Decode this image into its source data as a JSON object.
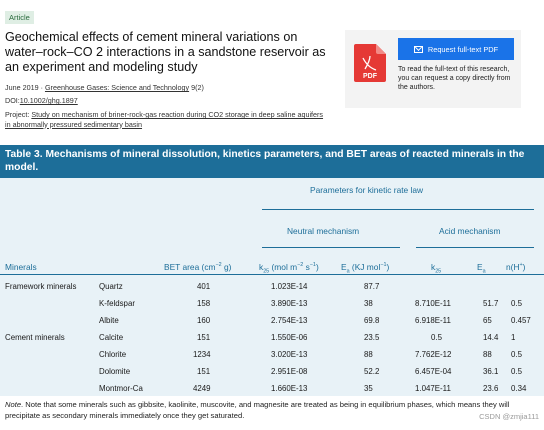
{
  "article": {
    "badge": "Article",
    "title": "Geochemical effects of cement mineral variations on water–rock–CO 2 interactions in a sandstone reservoir as an experiment and modeling study",
    "date": "June 2019",
    "journal": "Greenhouse Gases: Science and Technology",
    "issue": "9(2)",
    "doi_prefix": "DOI:",
    "doi": "10.1002/ghg.1897",
    "project_prefix": "Project:",
    "project": "Study on mechanism of briner-rock-gas reaction during CO2 storage in deep saline aquifers in abnormally pressured sedimentary basin"
  },
  "request": {
    "button_label": "Request full-text PDF",
    "description": "To read the full-text of this research, you can request a copy directly from the authors.",
    "pdf_label": "PDF"
  },
  "table": {
    "caption": "Table 3.  Mechanisms of mineral dissolution, kinetics parameters, and BET areas of reacted minerals in the model.",
    "group_header": "Parameters for kinetic rate law",
    "neutral_header": "Neutral mechanism",
    "acid_header": "Acid mechanism",
    "headers": {
      "minerals": "Minerals",
      "bet_area": "BET area (cm",
      "bet_exp": "−2",
      "bet_unit": " g)",
      "k_neutral": "k",
      "k_neutral_sub": "25",
      "k_neutral_unit": " (mol m",
      "k_neutral_exp1": "−2",
      "k_neutral_mid": " s",
      "k_neutral_exp2": "−1",
      "k_neutral_end": ")",
      "ea_neutral": "E",
      "ea_neutral_sub": "a",
      "ea_neutral_unit": " (KJ mol",
      "ea_neutral_exp": "−1",
      "ea_neutral_end": ")",
      "k_acid": "k",
      "k_acid_sub": "25",
      "ea_acid": "E",
      "ea_acid_sub": "a",
      "n_acid": "n(H",
      "n_acid_exp": "+",
      "n_acid_end": ")"
    },
    "rows": [
      {
        "group": "Framework minerals",
        "mineral": "Quartz",
        "bet": "401",
        "k_neutral": "1.023E-14",
        "ea_neutral": "87.7",
        "k_acid": "",
        "ea_acid": "",
        "n": ""
      },
      {
        "group": "",
        "mineral": "K-feldspar",
        "bet": "158",
        "k_neutral": "3.890E-13",
        "ea_neutral": "38",
        "k_acid": "8.710E-11",
        "ea_acid": "51.7",
        "n": "0.5"
      },
      {
        "group": "",
        "mineral": "Albite",
        "bet": "160",
        "k_neutral": "2.754E-13",
        "ea_neutral": "69.8",
        "k_acid": "6.918E-11",
        "ea_acid": "65",
        "n": "0.457"
      },
      {
        "group": "Cement minerals",
        "mineral": "Calcite",
        "bet": "151",
        "k_neutral": "1.550E-06",
        "ea_neutral": "23.5",
        "k_acid": "0.5",
        "ea_acid": "14.4",
        "n": "1"
      },
      {
        "group": "",
        "mineral": "Chlorite",
        "bet": "1234",
        "k_neutral": "3.020E-13",
        "ea_neutral": "88",
        "k_acid": "7.762E-12",
        "ea_acid": "88",
        "n": "0.5"
      },
      {
        "group": "",
        "mineral": "Dolomite",
        "bet": "151",
        "k_neutral": "2.951E-08",
        "ea_neutral": "52.2",
        "k_acid": "6.457E-04",
        "ea_acid": "36.1",
        "n": "0.5"
      },
      {
        "group": "",
        "mineral": "Montmor-Ca",
        "bet": "4249",
        "k_neutral": "1.660E-13",
        "ea_neutral": "35",
        "k_acid": "1.047E-11",
        "ea_acid": "23.6",
        "n": "0.34"
      }
    ]
  },
  "note": {
    "label": "Note",
    "text": ". Note that some minerals such as gibbsite, kaolinite, muscovite, and magnesite are treated as being in equilibrium phases, which means they will precipitate as secondary minerals immediately once they get saturated."
  },
  "watermark": "CSDN @zmjia111",
  "colors": {
    "table_header_bg": "#1d6e99",
    "table_body_bg": "#e8f2f7",
    "request_button": "#1a73e8",
    "pdf_icon": "#e53935"
  }
}
